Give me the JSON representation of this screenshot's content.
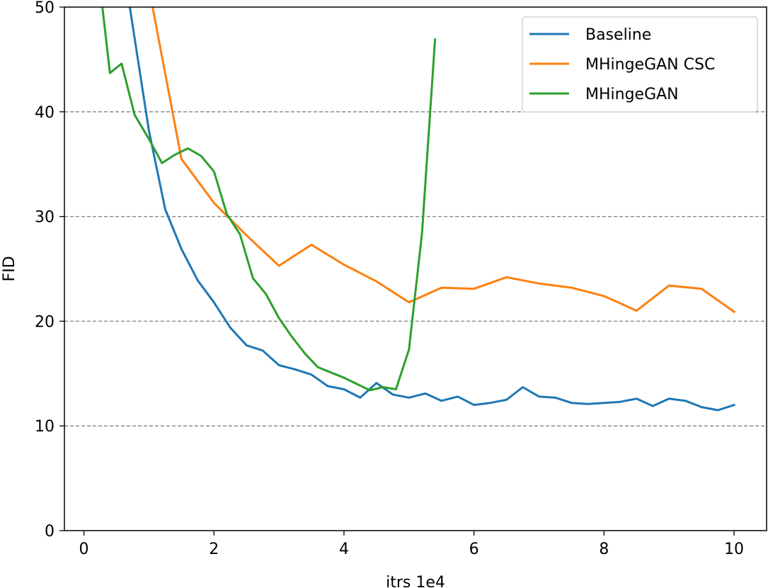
{
  "chart_data": {
    "type": "line",
    "title": "",
    "xlabel": "itrs 1e4",
    "ylabel": "FID",
    "xlim": [
      -0.3,
      10.5
    ],
    "ylim": [
      0,
      50
    ],
    "xticks": [
      0,
      2,
      4,
      6,
      8,
      10
    ],
    "yticks": [
      0,
      10,
      20,
      30,
      40,
      50
    ],
    "grid": "y-dashed",
    "legend_position": "top-right",
    "series": [
      {
        "name": "Baseline",
        "color": "#1f77b4",
        "x": [
          0.7,
          1.0,
          1.25,
          1.5,
          1.75,
          2.0,
          2.25,
          2.5,
          2.75,
          3.0,
          3.25,
          3.5,
          3.75,
          4.0,
          4.25,
          4.5,
          4.75,
          5.0,
          5.25,
          5.5,
          5.75,
          6.0,
          6.25,
          6.5,
          6.75,
          7.0,
          7.25,
          7.5,
          7.75,
          8.0,
          8.25,
          8.5,
          8.75,
          9.0,
          9.25,
          9.5,
          9.75,
          10.0
        ],
        "y": [
          50.2,
          38.2,
          30.7,
          26.9,
          23.9,
          21.8,
          19.4,
          17.7,
          17.2,
          15.8,
          15.4,
          14.9,
          13.8,
          13.5,
          12.7,
          14.1,
          13.0,
          12.7,
          13.1,
          12.4,
          12.8,
          12.0,
          12.2,
          12.5,
          13.7,
          12.8,
          12.7,
          12.2,
          12.1,
          12.2,
          12.3,
          12.6,
          11.9,
          12.6,
          12.4,
          11.8,
          11.5,
          12.0
        ]
      },
      {
        "name": "MHingeGAN CSC",
        "color": "#ff7f0e",
        "x": [
          1.05,
          1.5,
          2.0,
          2.5,
          3.0,
          3.5,
          4.0,
          4.5,
          5.0,
          5.5,
          6.0,
          6.5,
          7.0,
          7.5,
          8.0,
          8.5,
          9.0,
          9.5,
          10.0
        ],
        "y": [
          50.2,
          35.5,
          31.3,
          28.2,
          25.3,
          27.3,
          25.4,
          23.8,
          21.8,
          23.2,
          23.1,
          24.2,
          23.6,
          23.2,
          22.4,
          21.0,
          23.4,
          23.1,
          20.9
        ]
      },
      {
        "name": "MHingeGAN",
        "color": "#2ca02c",
        "x": [
          0.28,
          0.4,
          0.58,
          0.78,
          1.0,
          1.2,
          1.4,
          1.6,
          1.8,
          2.0,
          2.2,
          2.4,
          2.6,
          2.8,
          3.0,
          3.2,
          3.4,
          3.6,
          3.8,
          4.0,
          4.2,
          4.4,
          4.6,
          4.8,
          5.0,
          5.2,
          5.4
        ],
        "y": [
          50.2,
          43.7,
          44.6,
          39.7,
          37.4,
          35.1,
          35.9,
          36.5,
          35.8,
          34.3,
          30.2,
          28.3,
          24.1,
          22.6,
          20.3,
          18.5,
          16.9,
          15.6,
          15.1,
          14.6,
          14.0,
          13.4,
          13.7,
          13.5,
          17.3,
          28.4,
          46.9
        ]
      }
    ]
  }
}
